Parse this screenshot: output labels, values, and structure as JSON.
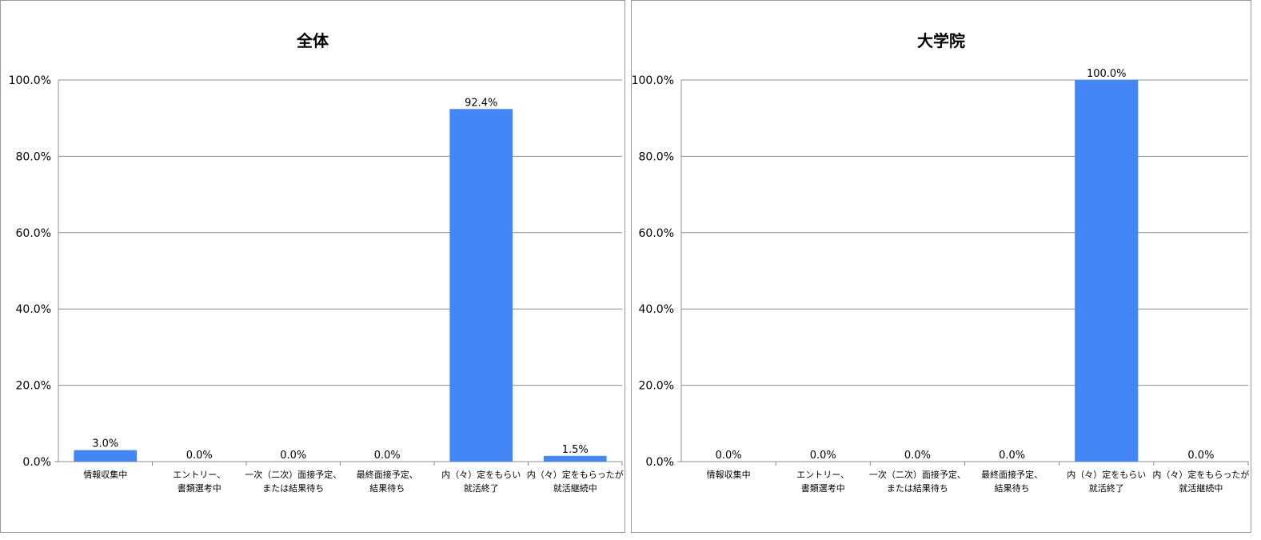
{
  "chart_data": [
    {
      "type": "bar",
      "title": "全体",
      "categories": [
        [
          "情報収集中"
        ],
        [
          "エントリー、",
          "書類選考中"
        ],
        [
          "一次（二次）面接予定、",
          "または結果待ち"
        ],
        [
          "最終面接予定、",
          "結果待ち"
        ],
        [
          "内（々）定をもらい",
          "就活終了"
        ],
        [
          "内（々）定をもらったが",
          "就活継続中"
        ]
      ],
      "values": [
        3.0,
        0.0,
        0.0,
        0.0,
        92.4,
        1.5
      ],
      "value_labels": [
        "3.0%",
        "0.0%",
        "0.0%",
        "0.0%",
        "92.4%",
        "1.5%"
      ],
      "y_ticks": [
        "0.0%",
        "20.0%",
        "40.0%",
        "60.0%",
        "80.0%",
        "100.0%"
      ],
      "ylim": [
        0,
        100
      ],
      "grid": true,
      "bar_color": "#4287f5"
    },
    {
      "type": "bar",
      "title": "大学院",
      "categories": [
        [
          "情報収集中"
        ],
        [
          "エントリー、",
          "書類選考中"
        ],
        [
          "一次（二次）面接予定、",
          "または結果待ち"
        ],
        [
          "最終面接予定、",
          "結果待ち"
        ],
        [
          "内（々）定をもらい",
          "就活終了"
        ],
        [
          "内（々）定をもらったが",
          "就活継続中"
        ]
      ],
      "values": [
        0.0,
        0.0,
        0.0,
        0.0,
        100.0,
        0.0
      ],
      "value_labels": [
        "0.0%",
        "0.0%",
        "0.0%",
        "0.0%",
        "100.0%",
        "0.0%"
      ],
      "y_ticks": [
        "0.0%",
        "20.0%",
        "40.0%",
        "60.0%",
        "80.0%",
        "100.0%"
      ],
      "ylim": [
        0,
        100
      ],
      "grid": true,
      "bar_color": "#4287f5"
    }
  ]
}
